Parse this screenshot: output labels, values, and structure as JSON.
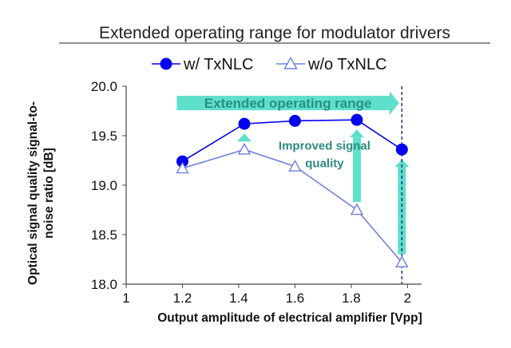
{
  "chart_data": {
    "type": "line",
    "title": "Extended operating range for modulator drivers",
    "xlabel": "Output amplitude of electrical amplifier [Vpp]",
    "ylabel": "Optical signal quality signal-to-noise ratio [dB]",
    "xlim": [
      1,
      2.05
    ],
    "ylim": [
      18.0,
      20.0
    ],
    "x_ticks": [
      1,
      1.2,
      1.4,
      1.6,
      1.8,
      2
    ],
    "x_tick_labels": [
      "1",
      "1.2",
      "1.4",
      "1.6",
      "1.8",
      "2"
    ],
    "y_ticks": [
      18.0,
      18.5,
      19.0,
      19.5,
      20.0
    ],
    "y_tick_labels": [
      "18.0",
      "18.5",
      "19.0",
      "19.5",
      "20.0"
    ],
    "grid": false,
    "legend_position": "top",
    "x": [
      1.2,
      1.42,
      1.6,
      1.82,
      1.98
    ],
    "series": [
      {
        "name": "w/ TxNLC",
        "marker": "filled-circle",
        "color": "#0000ee",
        "values": [
          19.24,
          19.62,
          19.65,
          19.66,
          19.36
        ]
      },
      {
        "name": "w/o TxNLC",
        "marker": "open-triangle",
        "color": "#6f7fe0",
        "values": [
          19.17,
          19.36,
          19.19,
          18.75,
          18.22
        ]
      }
    ],
    "annotations": {
      "operating_range": "Extended operating range",
      "quality_line1": "Improved signal",
      "quality_line2": "quality"
    },
    "improvement_arrows_x": [
      1.42,
      1.82,
      1.98
    ],
    "reference_line_x": 1.98,
    "colors": {
      "primary": "#0000ee",
      "secondary": "#6f7fe0",
      "arrow": "#5ee0cb",
      "annotation_text": "#2a8f84"
    }
  }
}
